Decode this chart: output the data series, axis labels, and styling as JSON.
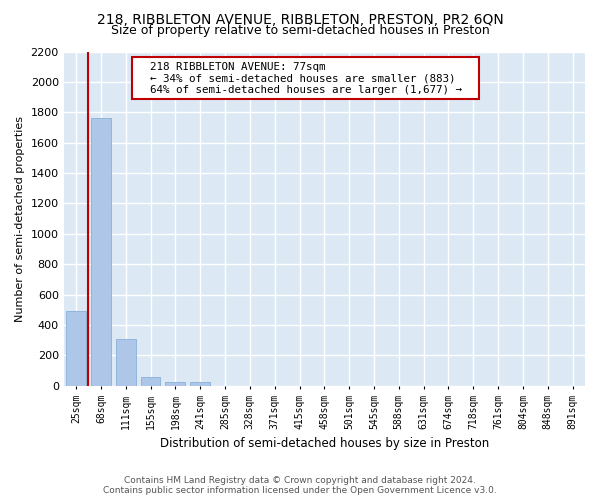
{
  "title1": "218, RIBBLETON AVENUE, RIBBLETON, PRESTON, PR2 6QN",
  "title2": "Size of property relative to semi-detached houses in Preston",
  "xlabel": "Distribution of semi-detached houses by size in Preston",
  "ylabel": "Number of semi-detached properties",
  "footer1": "Contains HM Land Registry data © Crown copyright and database right 2024.",
  "footer2": "Contains public sector information licensed under the Open Government Licence v3.0.",
  "annotation_line1": "218 RIBBLETON AVENUE: 77sqm",
  "annotation_line2": "← 34% of semi-detached houses are smaller (883)",
  "annotation_line3": "64% of semi-detached houses are larger (1,677) →",
  "bar_labels": [
    "25sqm",
    "68sqm",
    "111sqm",
    "155sqm",
    "198sqm",
    "241sqm",
    "285sqm",
    "328sqm",
    "371sqm",
    "415sqm",
    "458sqm",
    "501sqm",
    "545sqm",
    "588sqm",
    "631sqm",
    "674sqm",
    "718sqm",
    "761sqm",
    "804sqm",
    "848sqm",
    "891sqm"
  ],
  "bar_values": [
    490,
    1760,
    305,
    55,
    28,
    22,
    0,
    0,
    0,
    0,
    0,
    0,
    0,
    0,
    0,
    0,
    0,
    0,
    0,
    0,
    0
  ],
  "bar_color": "#aec6e8",
  "bar_edge_color": "#7ba7d4",
  "highlight_color": "#c00000",
  "red_line_x": 0.5,
  "ylim": [
    0,
    2200
  ],
  "yticks": [
    0,
    200,
    400,
    600,
    800,
    1000,
    1200,
    1400,
    1600,
    1800,
    2000,
    2200
  ],
  "plot_bg_color": "#dce9f5",
  "grid_color": "#ffffff",
  "title1_fontsize": 10,
  "title2_fontsize": 9,
  "bar_width": 0.8
}
